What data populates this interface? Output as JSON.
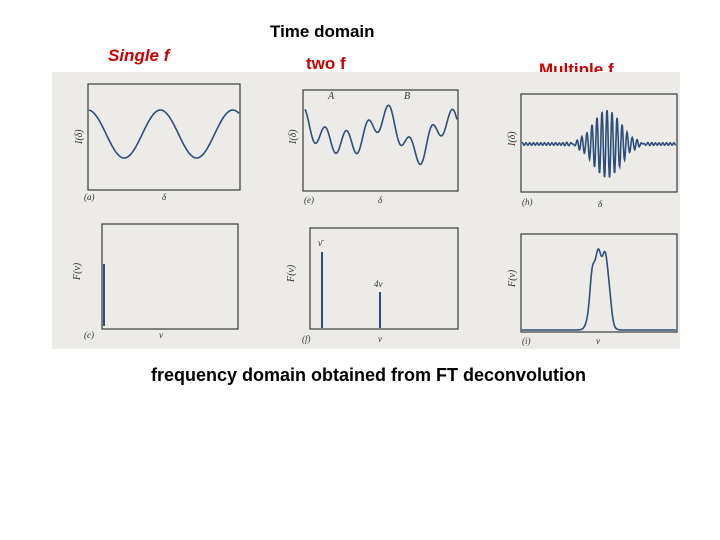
{
  "titles": {
    "time_domain": "Time domain",
    "single_f": "Single f",
    "two_f": "two f",
    "multiple_f": "Multiple f",
    "frequency_domain": "frequency domain obtained from FT deconvolution"
  },
  "figure": {
    "panels": [
      {
        "id": "a",
        "ylabel": "I(δ)",
        "tag": "(a)",
        "xlabel": "δ"
      },
      {
        "id": "e",
        "ylabel": "I(δ)",
        "tag": "(e)",
        "xlabel": "δ",
        "peak_labels": [
          "A",
          "B"
        ]
      },
      {
        "id": "h",
        "ylabel": "I(δ)",
        "tag": "(h)",
        "xlabel": "δ"
      },
      {
        "id": "c",
        "ylabel": "F(ν)",
        "tag": "(c)",
        "xlabel": "ν"
      },
      {
        "id": "f",
        "ylabel": "F(ν)",
        "tag": "(f)",
        "xlabel": "ν",
        "line_labels": [
          "ν̄",
          "4ν"
        ]
      },
      {
        "id": "i",
        "ylabel": "F(ν)",
        "tag": "(i)",
        "xlabel": "ν"
      }
    ]
  },
  "colors": {
    "accent_red": "#cc0000",
    "trace_blue": "#2e4f7a",
    "scan_background": "#ecebe7"
  }
}
